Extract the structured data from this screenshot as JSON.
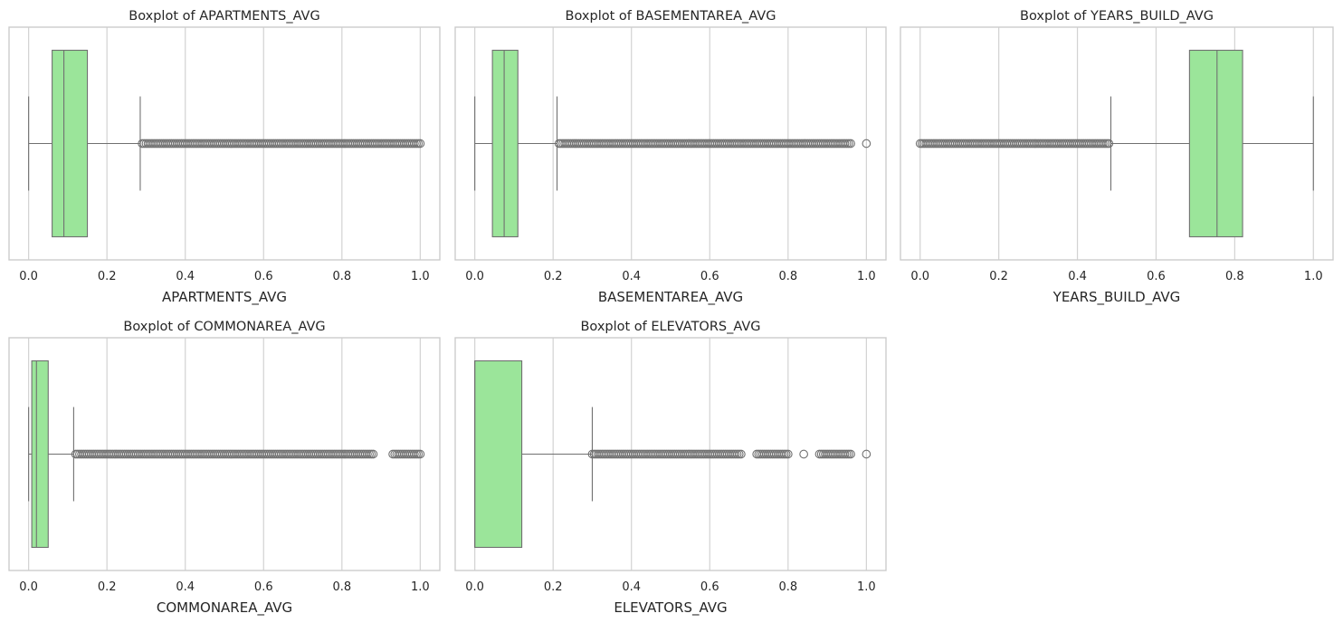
{
  "colors": {
    "box_fill": "#9be59a",
    "box_edge": "#707070",
    "grid": "#d3d3d3",
    "frame": "#cccccc",
    "background": "#ffffff"
  },
  "chart_data": [
    {
      "type": "boxplot",
      "title": "Boxplot of APARTMENTS_AVG",
      "xlabel": "APARTMENTS_AVG",
      "xlim": [
        -0.05,
        1.05
      ],
      "xticks": [
        "0.0",
        "0.2",
        "0.4",
        "0.6",
        "0.8",
        "1.0"
      ],
      "grid": "vertical",
      "whisker_low": 0.0,
      "q1": 0.06,
      "median": 0.09,
      "q3": 0.15,
      "whisker_high": 0.285,
      "outliers": [
        0.29,
        0.31,
        0.33,
        0.35,
        0.37,
        0.39,
        0.41,
        0.43,
        0.45,
        0.47,
        0.49,
        0.51,
        0.53,
        0.55,
        0.57,
        0.59,
        0.61,
        0.63,
        0.65,
        0.67,
        0.69,
        0.71,
        0.73,
        0.74,
        0.76,
        0.77,
        0.79,
        0.8,
        0.82,
        0.83,
        0.85,
        0.86,
        0.88,
        0.9,
        0.92,
        0.94,
        0.96,
        0.98,
        1.0
      ]
    },
    {
      "type": "boxplot",
      "title": "Boxplot of BASEMENTAREA_AVG",
      "xlabel": "BASEMENTAREA_AVG",
      "xlim": [
        -0.05,
        1.05
      ],
      "xticks": [
        "0.0",
        "0.2",
        "0.4",
        "0.6",
        "0.8",
        "1.0"
      ],
      "grid": "vertical",
      "whisker_low": 0.0,
      "q1": 0.045,
      "median": 0.075,
      "q3": 0.11,
      "whisker_high": 0.21,
      "outliers": [
        0.215,
        0.23,
        0.25,
        0.27,
        0.29,
        0.31,
        0.33,
        0.35,
        0.37,
        0.39,
        0.41,
        0.43,
        0.45,
        0.47,
        0.49,
        0.51,
        0.53,
        0.55,
        0.57,
        0.59,
        0.61,
        0.63,
        0.65,
        0.67,
        0.69,
        0.7,
        0.72,
        0.73,
        0.75,
        0.77,
        0.79,
        0.8,
        0.82,
        0.84,
        0.86,
        0.88,
        0.9,
        0.92,
        0.94,
        0.96,
        1.0
      ]
    },
    {
      "type": "boxplot",
      "title": "Boxplot of YEARS_BUILD_AVG",
      "xlabel": "YEARS_BUILD_AVG",
      "xlim": [
        -0.05,
        1.05
      ],
      "xticks": [
        "0.0",
        "0.2",
        "0.4",
        "0.6",
        "0.8",
        "1.0"
      ],
      "grid": "vertical",
      "whisker_low": 0.485,
      "q1": 0.685,
      "median": 0.755,
      "q3": 0.82,
      "whisker_high": 1.0,
      "outliers": [
        0.0,
        0.01,
        0.02,
        0.04,
        0.06,
        0.08,
        0.1,
        0.12,
        0.14,
        0.16,
        0.17,
        0.19,
        0.2,
        0.22,
        0.24,
        0.26,
        0.28,
        0.3,
        0.32,
        0.34,
        0.36,
        0.37,
        0.39,
        0.41,
        0.43,
        0.45,
        0.47,
        0.48
      ]
    },
    {
      "type": "boxplot",
      "title": "Boxplot of COMMONAREA_AVG",
      "xlabel": "COMMONAREA_AVG",
      "xlim": [
        -0.05,
        1.05
      ],
      "xticks": [
        "0.0",
        "0.2",
        "0.4",
        "0.6",
        "0.8",
        "1.0"
      ],
      "grid": "vertical",
      "whisker_low": 0.0,
      "q1": 0.008,
      "median": 0.02,
      "q3": 0.05,
      "whisker_high": 0.115,
      "outliers": [
        0.12,
        0.14,
        0.16,
        0.18,
        0.2,
        0.22,
        0.24,
        0.26,
        0.28,
        0.3,
        0.32,
        0.34,
        0.36,
        0.38,
        0.4,
        0.42,
        0.44,
        0.46,
        0.48,
        0.5,
        0.52,
        0.54,
        0.56,
        0.58,
        0.6,
        0.62,
        0.64,
        0.66,
        0.68,
        0.7,
        0.72,
        0.74,
        0.76,
        0.78,
        0.81,
        0.84,
        0.86,
        0.88,
        0.93,
        0.96,
        0.99,
        1.0
      ]
    },
    {
      "type": "boxplot",
      "title": "Boxplot of ELEVATORS_AVG",
      "xlabel": "ELEVATORS_AVG",
      "xlim": [
        -0.05,
        1.05
      ],
      "xticks": [
        "0.0",
        "0.2",
        "0.4",
        "0.6",
        "0.8",
        "1.0"
      ],
      "grid": "vertical",
      "whisker_low": 0.0,
      "q1": 0.0,
      "median": 0.0,
      "q3": 0.12,
      "whisker_high": 0.3,
      "outliers": [
        0.3,
        0.31,
        0.32,
        0.33,
        0.34,
        0.35,
        0.36,
        0.37,
        0.38,
        0.39,
        0.4,
        0.42,
        0.44,
        0.45,
        0.46,
        0.48,
        0.5,
        0.52,
        0.53,
        0.54,
        0.56,
        0.58,
        0.6,
        0.62,
        0.64,
        0.66,
        0.68,
        0.72,
        0.74,
        0.76,
        0.78,
        0.8,
        0.84,
        0.88,
        0.9,
        0.92,
        0.93,
        0.96,
        1.0
      ]
    }
  ]
}
